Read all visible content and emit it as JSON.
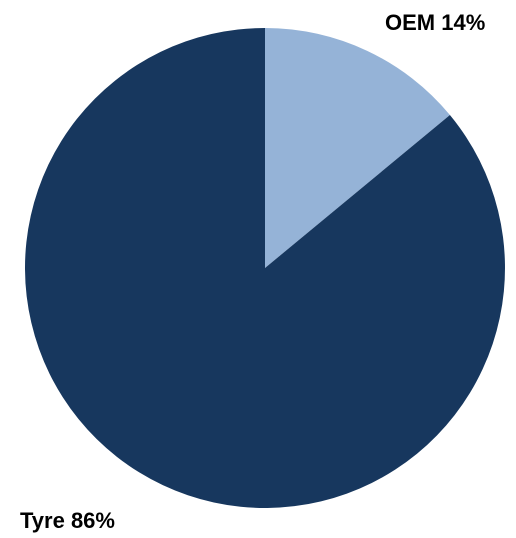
{
  "chart_data": {
    "type": "pie",
    "slices": [
      {
        "category": "OEM",
        "value": 14,
        "label": "OEM 14%",
        "color": "#95b3d7"
      },
      {
        "category": "Tyre",
        "value": 86,
        "label": "Tyre 86%",
        "color": "#17375e"
      }
    ],
    "start_angle_deg": 0,
    "direction": "clockwise"
  }
}
